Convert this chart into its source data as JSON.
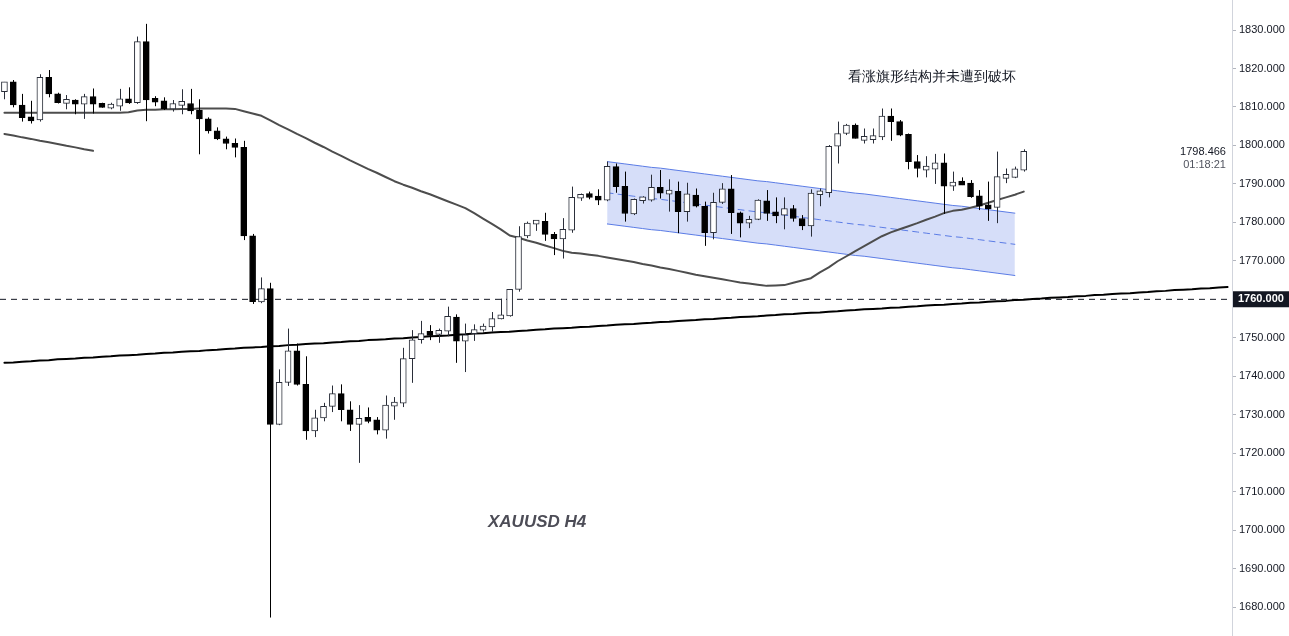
{
  "chart_data": {
    "type": "candlestick",
    "categories": [
      null,
      null,
      null,
      null,
      null,
      null,
      null,
      null,
      null,
      null,
      null,
      null,
      null,
      null,
      null,
      null,
      null,
      null,
      null,
      null,
      null,
      null,
      null,
      null,
      null,
      null,
      null,
      null,
      null,
      null,
      null,
      null,
      null,
      null,
      null,
      null,
      null,
      null,
      null,
      null,
      null,
      null,
      null,
      null,
      null,
      null,
      null,
      null,
      null,
      null,
      null,
      null,
      null,
      null,
      null,
      null,
      null,
      null,
      null,
      null,
      null,
      null,
      null,
      null,
      null,
      null,
      null,
      null,
      null,
      null,
      null,
      null,
      null,
      null,
      null,
      null,
      null,
      null,
      null,
      null,
      null,
      null,
      null,
      null,
      null,
      null,
      null,
      null,
      null,
      null,
      null,
      null,
      null,
      null,
      null,
      null,
      null,
      null,
      null,
      null,
      null,
      null,
      null,
      null,
      null,
      null,
      null,
      null,
      null,
      null,
      null,
      null,
      null,
      null,
      null,
      null,
      null,
      null,
      null,
      null,
      null,
      null,
      null,
      null,
      null,
      null,
      null,
      null,
      null,
      null,
      null,
      null,
      null,
      null,
      null,
      null,
      null,
      null,
      null
    ],
    "ohlc": [
      [
        1814.0,
        1816.5,
        1812.0,
        1816.5
      ],
      [
        1816.5,
        1817.0,
        1809.9,
        1810.5
      ],
      [
        1810.5,
        1813.4,
        1806.2,
        1807.2
      ],
      [
        1807.2,
        1811.6,
        1805.7,
        1806.6
      ],
      [
        1806.6,
        1818.5,
        1806.2,
        1817.7
      ],
      [
        1817.7,
        1819.6,
        1812.5,
        1813.4
      ],
      [
        1813.4,
        1813.7,
        1810.9,
        1811.1
      ],
      [
        1811.1,
        1813.1,
        1809.4,
        1811.8
      ],
      [
        1811.8,
        1812.0,
        1808.1,
        1810.7
      ],
      [
        1810.7,
        1813.4,
        1806.9,
        1812.7
      ],
      [
        1812.7,
        1814.8,
        1808.3,
        1810.7
      ],
      [
        1810.7,
        1811.1,
        1809.8,
        1810.1
      ],
      [
        1810.1,
        1811.1,
        1809.4,
        1810.3
      ],
      [
        1810.2,
        1814.7,
        1809.0,
        1812.1
      ],
      [
        1812.1,
        1815.1,
        1810.8,
        1811.1
      ],
      [
        1811.1,
        1828.3,
        1810.8,
        1827.0
      ],
      [
        1827.0,
        1831.6,
        1806.3,
        1811.8
      ],
      [
        1811.8,
        1812.8,
        1810.2,
        1811.7
      ],
      [
        1811.6,
        1812.5,
        1809.2,
        1809.5
      ],
      [
        1809.5,
        1811.8,
        1808.8,
        1810.9
      ],
      [
        1810.9,
        1814.6,
        1808.1,
        1811.0
      ],
      [
        1810.9,
        1814.7,
        1808.1,
        1809.0
      ],
      [
        1809.2,
        1812.0,
        1797.7,
        1806.9
      ],
      [
        1806.9,
        1807.3,
        1803.1,
        1803.8
      ],
      [
        1803.8,
        1804.7,
        1801.4,
        1801.7
      ],
      [
        1801.7,
        1802.3,
        1799.0,
        1800.5
      ],
      [
        1800.5,
        1801.8,
        1796.9,
        1799.5
      ],
      [
        1799.5,
        1801.2,
        1775.4,
        1776.5
      ],
      [
        1776.5,
        1777.0,
        1758.8,
        1759.4
      ],
      [
        1759.3,
        1765.7,
        1759.0,
        1762.8
      ],
      [
        1762.8,
        1764.3,
        1677.3,
        1727.5
      ],
      [
        1727.5,
        1741.8,
        1727.3,
        1738.4
      ],
      [
        1738.4,
        1752.4,
        1737.5,
        1746.6
      ],
      [
        1746.6,
        1748.5,
        1737.6,
        1737.9
      ],
      [
        1737.9,
        1745.2,
        1723.5,
        1725.8
      ],
      [
        1725.8,
        1731.3,
        1724.2,
        1729.2
      ],
      [
        1729.2,
        1733.1,
        1728.3,
        1732.2
      ],
      [
        1732.2,
        1737.6,
        1730.7,
        1735.5
      ],
      [
        1735.5,
        1737.9,
        1728.3,
        1731.3
      ],
      [
        1731.3,
        1733.5,
        1725.8,
        1727.5
      ],
      [
        1727.5,
        1732.5,
        1717.5,
        1729.1
      ],
      [
        1729.1,
        1731.9,
        1727.8,
        1728.5
      ],
      [
        1728.7,
        1729.4,
        1724.9,
        1726.0
      ],
      [
        1726.0,
        1735.0,
        1723.8,
        1732.5
      ],
      [
        1732.5,
        1734.6,
        1728.7,
        1733.0
      ],
      [
        1733.0,
        1747.4,
        1732.0,
        1744.6
      ],
      [
        1744.6,
        1752.0,
        1738.3,
        1749.5
      ],
      [
        1749.5,
        1754.4,
        1748.5,
        1751.1
      ],
      [
        1751.3,
        1753.3,
        1749.4,
        1751.0
      ],
      [
        1751.0,
        1752.4,
        1748.7,
        1751.8
      ],
      [
        1751.7,
        1758.1,
        1750.4,
        1755.6
      ],
      [
        1755.4,
        1756.1,
        1743.5,
        1749.1
      ],
      [
        1749.1,
        1753.7,
        1741.1,
        1750.8
      ],
      [
        1751.1,
        1753.5,
        1749.2,
        1752.1
      ],
      [
        1752.0,
        1753.7,
        1751.6,
        1753.0
      ],
      [
        1752.8,
        1756.7,
        1751.6,
        1755.0
      ],
      [
        1755.0,
        1760.2,
        1754.8,
        1755.9
      ],
      [
        1755.7,
        1762.6,
        1755.5,
        1762.6
      ],
      [
        1762.6,
        1779.0,
        1762.0,
        1776.3
      ],
      [
        1776.5,
        1780.2,
        1775.9,
        1779.8
      ],
      [
        1779.8,
        1780.6,
        1777.8,
        1780.3
      ],
      [
        1780.3,
        1782.5,
        1775.2,
        1776.9
      ],
      [
        1776.9,
        1777.5,
        1771.5,
        1775.7
      ],
      [
        1775.7,
        1781.1,
        1770.6,
        1778.2
      ],
      [
        1778.0,
        1789.3,
        1777.3,
        1786.5
      ],
      [
        1786.5,
        1787.5,
        1785.6,
        1787.1
      ],
      [
        1787.1,
        1788.0,
        1786.0,
        1786.9
      ],
      [
        1786.8,
        1788.6,
        1784.5,
        1785.8
      ],
      [
        1785.8,
        1795.8,
        1785.5,
        1794.6
      ],
      [
        1794.5,
        1795.3,
        1787.7,
        1789.3
      ],
      [
        1789.4,
        1793.2,
        1780.2,
        1782.3
      ],
      [
        1782.2,
        1786.2,
        1781.9,
        1786.0
      ],
      [
        1786.0,
        1786.8,
        1784.9,
        1786.3
      ],
      [
        1785.8,
        1792.4,
        1785.4,
        1789.1
      ],
      [
        1789.1,
        1793.6,
        1786.2,
        1787.6
      ],
      [
        1787.6,
        1791.2,
        1782.8,
        1788.1
      ],
      [
        1788.1,
        1790.6,
        1777.2,
        1782.8
      ],
      [
        1782.8,
        1790.3,
        1780.2,
        1787.4
      ],
      [
        1787.1,
        1788.8,
        1783.9,
        1784.2
      ],
      [
        1784.2,
        1785.4,
        1773.9,
        1777.3
      ],
      [
        1777.3,
        1787.7,
        1775.6,
        1785.2
      ],
      [
        1785.2,
        1790.2,
        1784.8,
        1788.7
      ],
      [
        1788.7,
        1792.3,
        1777.0,
        1782.5
      ],
      [
        1782.5,
        1782.8,
        1776.1,
        1779.8
      ],
      [
        1779.8,
        1781.7,
        1778.5,
        1780.8
      ],
      [
        1780.8,
        1786.0,
        1780.6,
        1785.8
      ],
      [
        1785.6,
        1788.4,
        1780.4,
        1782.3
      ],
      [
        1782.5,
        1786.5,
        1779.8,
        1781.9
      ],
      [
        1781.9,
        1786.5,
        1778.2,
        1783.6
      ],
      [
        1783.6,
        1784.5,
        1780.2,
        1781.0
      ],
      [
        1781.0,
        1781.9,
        1778.0,
        1779.1
      ],
      [
        1779.1,
        1788.6,
        1776.3,
        1787.6
      ],
      [
        1787.6,
        1788.8,
        1784.2,
        1787.8
      ],
      [
        1787.7,
        1800.1,
        1786.5,
        1799.8
      ],
      [
        1799.8,
        1806.2,
        1795.3,
        1803.1
      ],
      [
        1803.1,
        1805.6,
        1802.7,
        1805.3
      ],
      [
        1805.3,
        1805.7,
        1801.8,
        1801.8
      ],
      [
        1801.8,
        1804.4,
        1800.5,
        1801.9
      ],
      [
        1801.9,
        1804.4,
        1800.5,
        1802.2
      ],
      [
        1802.2,
        1809.6,
        1801.4,
        1807.6
      ],
      [
        1807.6,
        1809.6,
        1801.2,
        1806.2
      ],
      [
        1806.2,
        1806.6,
        1802.4,
        1802.7
      ],
      [
        1802.9,
        1803.1,
        1793.8,
        1795.8
      ],
      [
        1795.8,
        1797.5,
        1791.7,
        1794.0
      ],
      [
        1794.0,
        1797.2,
        1791.7,
        1794.2
      ],
      [
        1793.8,
        1797.8,
        1790.0,
        1795.5
      ],
      [
        1795.5,
        1797.9,
        1782.2,
        1789.4
      ],
      [
        1789.6,
        1793.2,
        1788.2,
        1790.3
      ],
      [
        1790.3,
        1791.7,
        1789.7,
        1790.1
      ],
      [
        1790.2,
        1791.0,
        1786.4,
        1786.7
      ],
      [
        1786.9,
        1788.4,
        1783.2,
        1784.2
      ],
      [
        1784.2,
        1790.6,
        1780.4,
        1783.9
      ],
      [
        1783.9,
        1798.4,
        1779.8,
        1791.9
      ],
      [
        1791.9,
        1794.0,
        1790.2,
        1792.0
      ],
      [
        1791.7,
        1794.5,
        1791.5,
        1793.9
      ],
      [
        1793.6,
        1799.0,
        1793.2,
        1798.466
      ],
      null,
      null,
      null,
      null,
      null,
      null,
      null,
      null,
      null,
      null,
      null,
      null,
      null,
      null,
      null,
      null,
      null,
      null,
      null,
      null,
      null,
      null,
      null
    ],
    "series": [
      {
        "type": "line",
        "color": "#4d4d4d",
        "values": [
          1808.5,
          1808.5,
          1808.5,
          1808.5,
          1808.5,
          1808.5,
          1808.5,
          1808.5,
          1808.5,
          1808.5,
          1808.5,
          1808.5,
          1808.5,
          1808.5,
          1808.6,
          1809.1,
          1809.3,
          1809.3,
          1809.4,
          1809.4,
          1809.5,
          1809.5,
          1809.6,
          1809.6,
          1809.6,
          1809.6,
          1809.5,
          1808.9,
          1808.3,
          1807.7,
          1806.5,
          1805.3,
          1804.2,
          1803.0,
          1801.9,
          1800.7,
          1799.6,
          1798.4,
          1797.3,
          1796.1,
          1795.0,
          1793.9,
          1792.9,
          1791.8,
          1790.7,
          1789.8,
          1789.0,
          1788.1,
          1787.3,
          1786.4,
          1785.5,
          1784.6,
          1783.7,
          1782.4,
          1781.0,
          1779.6,
          1778.2,
          1776.6,
          1776.0,
          1775.3,
          1774.7,
          1774.0,
          1773.3,
          1772.6,
          1772.1,
          1771.9,
          1771.6,
          1771.3,
          1770.9,
          1770.5,
          1770.1,
          1769.7,
          1769.2,
          1768.8,
          1768.3,
          1767.9,
          1767.4,
          1766.9,
          1766.4,
          1766.0,
          1765.6,
          1765.2,
          1764.8,
          1764.4,
          1764.1,
          1763.8,
          1763.5,
          1763.6,
          1763.7,
          1764.3,
          1764.9,
          1765.5,
          1767.0,
          1768.3,
          1769.9,
          1771.2,
          1772.5,
          1773.8,
          1775.1,
          1776.4,
          1777.4,
          1778.2,
          1779.0,
          1779.8,
          1780.7,
          1781.5,
          1782.4,
          1783.0,
          1783.3,
          1783.8,
          1784.4,
          1785.1,
          1785.8,
          1786.5,
          1787.2,
          1788.0,
          null,
          null,
          null,
          null,
          null,
          null,
          null,
          null,
          null,
          null,
          null,
          null,
          null,
          null,
          null,
          null,
          null,
          null,
          null,
          null,
          null,
          null,
          null
        ]
      },
      {
        "type": "line",
        "color": "#4d4d4d",
        "values": [
          1803.0,
          1802.6,
          1802.1,
          1801.7,
          1801.2,
          1800.8,
          1800.4,
          1799.9,
          1799.5,
          1799.0,
          1798.6,
          null,
          null,
          null,
          null,
          null,
          null,
          null,
          null,
          null,
          null,
          null,
          null,
          null,
          null,
          null,
          null,
          null,
          null,
          null,
          null,
          null,
          null,
          null,
          null,
          null,
          null,
          null,
          null,
          null,
          null,
          null,
          null,
          null,
          null,
          null,
          null,
          null,
          null,
          null,
          null,
          null,
          null,
          null,
          null,
          null,
          null,
          null,
          null,
          null,
          null,
          null,
          null,
          null,
          null,
          null,
          null,
          null,
          null,
          null,
          null,
          null,
          null,
          null,
          null,
          null,
          null,
          null,
          null,
          null,
          null,
          null,
          null,
          null,
          null,
          null,
          null,
          null,
          null,
          null,
          null,
          null,
          null,
          null,
          null,
          null,
          null,
          null,
          null,
          null,
          null,
          null,
          null,
          null,
          null,
          null,
          null,
          null,
          null,
          null,
          null,
          null,
          null,
          null,
          null,
          null,
          null,
          null,
          null,
          null,
          null,
          null,
          null,
          null,
          null,
          null,
          null,
          null,
          null,
          null,
          null,
          null,
          null,
          null,
          null,
          null,
          null,
          null,
          null
        ]
      },
      {
        "type": "line",
        "color": "#000000",
        "values": [
          1743.5,
          1743.6,
          1743.8,
          1743.9,
          1744.1,
          1744.2,
          1744.4,
          1744.5,
          1744.6,
          1744.8,
          1744.9,
          1745.1,
          1745.2,
          1745.4,
          1745.5,
          1745.6,
          1745.8,
          1745.9,
          1746.1,
          1746.2,
          1746.4,
          1746.5,
          1746.6,
          1746.8,
          1746.9,
          1747.1,
          1747.2,
          1747.4,
          1747.5,
          1747.6,
          1747.8,
          1747.9,
          1748.1,
          1748.2,
          1748.4,
          1748.5,
          1748.6,
          1748.8,
          1748.9,
          1749.1,
          1749.2,
          1749.4,
          1749.5,
          1749.6,
          1749.8,
          1749.9,
          1750.1,
          1750.2,
          1750.4,
          1750.5,
          1750.6,
          1750.8,
          1750.9,
          1751.1,
          1751.2,
          1751.4,
          1751.5,
          1751.6,
          1751.8,
          1751.9,
          1752.1,
          1752.2,
          1752.4,
          1752.5,
          1752.6,
          1752.8,
          1752.9,
          1753.1,
          1753.2,
          1753.4,
          1753.5,
          1753.6,
          1753.8,
          1753.9,
          1754.1,
          1754.2,
          1754.4,
          1754.5,
          1754.6,
          1754.8,
          1754.9,
          1755.1,
          1755.2,
          1755.4,
          1755.5,
          1755.6,
          1755.8,
          1755.9,
          1756.1,
          1756.2,
          1756.4,
          1756.5,
          1756.6,
          1756.8,
          1756.9,
          1757.1,
          1757.2,
          1757.4,
          1757.5,
          1757.6,
          1757.8,
          1757.9,
          1758.1,
          1758.2,
          1758.4,
          1758.5,
          1758.6,
          1758.8,
          1758.9,
          1759.1,
          1759.2,
          1759.4,
          1759.5,
          1759.6,
          1759.8,
          1759.9,
          1760.1,
          1760.2,
          1760.4,
          1760.5,
          1760.6,
          1760.8,
          1760.9,
          1761.1,
          1761.2,
          1761.4,
          1761.5,
          1761.6,
          1761.8,
          1761.9,
          1762.1,
          1762.2,
          1762.4,
          1762.5,
          1762.6,
          1762.8,
          1762.9,
          1763.1,
          1763.2
        ]
      },
      {
        "type": "line",
        "color": "#5b7ce6",
        "values": [
          null,
          null,
          null,
          null,
          null,
          null,
          null,
          null,
          null,
          null,
          null,
          null,
          null,
          null,
          null,
          null,
          null,
          null,
          null,
          null,
          null,
          null,
          null,
          null,
          null,
          null,
          null,
          null,
          null,
          null,
          null,
          null,
          null,
          null,
          null,
          null,
          null,
          null,
          null,
          null,
          null,
          null,
          null,
          null,
          null,
          null,
          null,
          null,
          null,
          null,
          null,
          null,
          null,
          null,
          null,
          null,
          null,
          null,
          null,
          null,
          null,
          null,
          null,
          null,
          null,
          null,
          null,
          null,
          1795.8,
          1795.5,
          1795.2,
          1794.9,
          1794.6,
          1794.3,
          1794.1,
          1793.8,
          1793.5,
          1793.2,
          1792.9,
          1792.6,
          1792.3,
          1792.0,
          1791.7,
          1791.4,
          1791.1,
          1790.8,
          1790.6,
          1790.3,
          1790.0,
          1789.7,
          1789.4,
          1789.1,
          1788.8,
          1788.5,
          1788.2,
          1787.9,
          1787.6,
          1787.4,
          1787.1,
          1786.8,
          1786.5,
          1786.2,
          1785.9,
          1785.6,
          1785.3,
          1785.0,
          1784.7,
          1784.4,
          1784.2,
          1783.9,
          1783.6,
          1783.3,
          1783.0,
          1782.7,
          1782.4,
          null,
          null,
          null,
          null,
          null,
          null,
          null,
          null,
          null,
          null,
          null,
          null,
          null,
          null,
          null,
          null,
          null,
          null,
          null,
          null,
          null,
          null,
          null,
          null
        ]
      },
      {
        "type": "line",
        "color": "#5b7ce6",
        "values": [
          null,
          null,
          null,
          null,
          null,
          null,
          null,
          null,
          null,
          null,
          null,
          null,
          null,
          null,
          null,
          null,
          null,
          null,
          null,
          null,
          null,
          null,
          null,
          null,
          null,
          null,
          null,
          null,
          null,
          null,
          null,
          null,
          null,
          null,
          null,
          null,
          null,
          null,
          null,
          null,
          null,
          null,
          null,
          null,
          null,
          null,
          null,
          null,
          null,
          null,
          null,
          null,
          null,
          null,
          null,
          null,
          null,
          null,
          null,
          null,
          null,
          null,
          null,
          null,
          null,
          null,
          null,
          null,
          1779.6,
          1779.3,
          1779.0,
          1778.7,
          1778.4,
          1778.1,
          1777.9,
          1777.6,
          1777.3,
          1777.0,
          1776.7,
          1776.4,
          1776.1,
          1775.8,
          1775.5,
          1775.2,
          1774.9,
          1774.6,
          1774.4,
          1774.1,
          1773.8,
          1773.5,
          1773.2,
          1772.9,
          1772.6,
          1772.3,
          1772.0,
          1771.7,
          1771.4,
          1771.2,
          1770.9,
          1770.6,
          1770.3,
          1770.0,
          1769.7,
          1769.4,
          1769.1,
          1768.8,
          1768.5,
          1768.2,
          1768.0,
          1767.7,
          1767.4,
          1767.1,
          1766.8,
          1766.5,
          1766.2,
          null,
          null,
          null,
          null,
          null,
          null,
          null,
          null,
          null,
          null,
          null,
          null,
          null,
          null,
          null,
          null,
          null,
          null,
          null,
          null,
          null,
          null,
          null,
          null
        ]
      },
      {
        "type": "line",
        "color": "#5b7ce6",
        "line_style": "dashed",
        "values": [
          null,
          null,
          null,
          null,
          null,
          null,
          null,
          null,
          null,
          null,
          null,
          null,
          null,
          null,
          null,
          null,
          null,
          null,
          null,
          null,
          null,
          null,
          null,
          null,
          null,
          null,
          null,
          null,
          null,
          null,
          null,
          null,
          null,
          null,
          null,
          null,
          null,
          null,
          null,
          null,
          null,
          null,
          null,
          null,
          null,
          null,
          null,
          null,
          null,
          null,
          null,
          null,
          null,
          null,
          null,
          null,
          null,
          null,
          null,
          null,
          null,
          null,
          null,
          null,
          null,
          null,
          null,
          null,
          1787.7,
          1787.4,
          1787.1,
          1786.8,
          1786.5,
          1786.2,
          1786.0,
          1785.7,
          1785.4,
          1785.1,
          1784.8,
          1784.5,
          1784.2,
          1783.9,
          1783.6,
          1783.3,
          1783.0,
          1782.7,
          1782.5,
          1782.2,
          1781.9,
          1781.6,
          1781.3,
          1781.0,
          1780.7,
          1780.4,
          1780.1,
          1779.8,
          1779.5,
          1779.3,
          1779.0,
          1778.7,
          1778.4,
          1778.1,
          1777.8,
          1777.5,
          1777.2,
          1776.9,
          1776.6,
          1776.3,
          1776.1,
          1775.8,
          1775.5,
          1775.2,
          1774.9,
          1774.6,
          1774.3,
          null,
          null,
          null,
          null,
          null,
          null,
          null,
          null,
          null,
          null,
          null,
          null,
          null,
          null,
          null,
          null,
          null,
          null,
          null,
          null,
          null,
          null,
          null,
          null
        ],
        "upper": [
          null,
          null,
          null,
          null,
          null,
          null,
          null,
          null,
          null,
          null,
          null,
          null,
          null,
          null,
          null,
          null,
          null,
          null,
          null,
          null,
          null,
          null,
          null,
          null,
          null,
          null,
          null,
          null,
          null,
          null,
          null,
          null,
          null,
          null,
          null,
          null,
          null,
          null,
          null,
          null,
          null,
          null,
          null,
          null,
          null,
          null,
          null,
          null,
          null,
          null,
          null,
          null,
          null,
          null,
          null,
          null,
          null,
          null,
          null,
          null,
          null,
          null,
          null,
          null,
          null,
          null,
          null,
          null,
          1795.8,
          1795.5,
          1795.2,
          1794.9,
          1794.6,
          1794.3,
          1794.1,
          1793.8,
          1793.5,
          1793.2,
          1792.9,
          1792.6,
          1792.3,
          1792.0,
          1791.7,
          1791.4,
          1791.1,
          1790.8,
          1790.6,
          1790.3,
          1790.0,
          1789.7,
          1789.4,
          1789.1,
          1788.8,
          1788.5,
          1788.2,
          1787.9,
          1787.6,
          1787.4,
          1787.1,
          1786.8,
          1786.5,
          1786.2,
          1785.9,
          1785.6,
          1785.3,
          1785.0,
          1784.7,
          1784.4,
          1784.2,
          1783.9,
          1783.6,
          1783.3,
          1783.0,
          1782.7,
          1782.4,
          null,
          null,
          null,
          null,
          null,
          null,
          null,
          null,
          null,
          null,
          null,
          null,
          null,
          null,
          null,
          null,
          null,
          null,
          null,
          null,
          null,
          null,
          null,
          null
        ],
        "lower": [
          null,
          null,
          null,
          null,
          null,
          null,
          null,
          null,
          null,
          null,
          null,
          null,
          null,
          null,
          null,
          null,
          null,
          null,
          null,
          null,
          null,
          null,
          null,
          null,
          null,
          null,
          null,
          null,
          null,
          null,
          null,
          null,
          null,
          null,
          null,
          null,
          null,
          null,
          null,
          null,
          null,
          null,
          null,
          null,
          null,
          null,
          null,
          null,
          null,
          null,
          null,
          null,
          null,
          null,
          null,
          null,
          null,
          null,
          null,
          null,
          null,
          null,
          null,
          null,
          null,
          null,
          null,
          null,
          1779.6,
          1779.3,
          1779.0,
          1778.7,
          1778.4,
          1778.1,
          1777.9,
          1777.6,
          1777.3,
          1777.0,
          1776.7,
          1776.4,
          1776.1,
          1775.8,
          1775.5,
          1775.2,
          1774.9,
          1774.6,
          1774.4,
          1774.1,
          1773.8,
          1773.5,
          1773.2,
          1772.9,
          1772.6,
          1772.3,
          1772.0,
          1771.7,
          1771.4,
          1771.2,
          1770.9,
          1770.6,
          1770.3,
          1770.0,
          1769.7,
          1769.4,
          1769.1,
          1768.8,
          1768.5,
          1768.2,
          1768.0,
          1767.7,
          1767.4,
          1767.1,
          1766.8,
          1766.5,
          1766.2,
          null,
          null,
          null,
          null,
          null,
          null,
          null,
          null,
          null,
          null,
          null,
          null,
          null,
          null,
          null,
          null,
          null,
          null,
          null,
          null,
          null,
          null,
          null,
          null
        ]
      }
    ],
    "ylim": [
      1672.5,
      1837.8
    ],
    "yticks": [
      {
        "value": 1680,
        "label": "1680.000"
      },
      {
        "value": 1690,
        "label": "1690.000"
      },
      {
        "value": 1700,
        "label": "1700.000"
      },
      {
        "value": 1710,
        "label": "1710.000"
      },
      {
        "value": 1720,
        "label": "1720.000"
      },
      {
        "value": 1730,
        "label": "1730.000"
      },
      {
        "value": 1740,
        "label": "1740.000"
      },
      {
        "value": 1750,
        "label": "1750.000"
      },
      {
        "value": 1760,
        "label": null
      },
      {
        "value": 1770,
        "label": "1770.000"
      },
      {
        "value": 1780,
        "label": "1780.000"
      },
      {
        "value": 1790,
        "label": "1790.000"
      },
      {
        "value": 1800,
        "label": "1800.000"
      },
      {
        "value": 1810,
        "label": "1810.000"
      },
      {
        "value": 1820,
        "label": "1820.000"
      },
      {
        "value": 1830,
        "label": "1830.000"
      }
    ],
    "ref_lines": [
      {
        "axis": "y",
        "value": 1760,
        "label": "1760.000",
        "color": "#131722",
        "line_style": "dashed"
      }
    ],
    "annotations": [
      "看涨旗形结构并未遭到破坏",
      "XAUUSD H4",
      "1798.466",
      "01:18:21"
    ],
    "tick_labels": "y"
  }
}
